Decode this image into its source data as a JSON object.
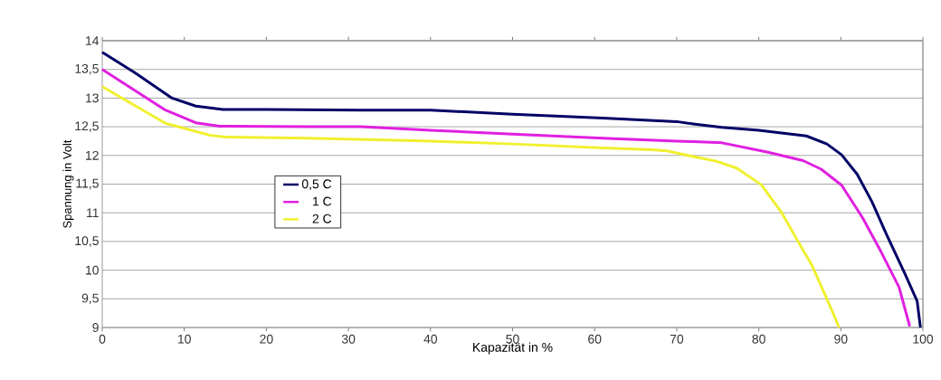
{
  "chart_data": {
    "type": "line",
    "xlabel": "Kapazität in %",
    "ylabel": "Spannung in Volt",
    "xlim": [
      0,
      100
    ],
    "ylim": [
      9,
      14
    ],
    "xticks": [
      0,
      10,
      20,
      30,
      40,
      50,
      60,
      70,
      80,
      90,
      100
    ],
    "yticks": [
      9,
      {
        "value": 9.5,
        "label": "9,5"
      },
      10,
      {
        "value": 10.5,
        "label": "10,5"
      },
      11,
      {
        "value": 11.5,
        "label": "11,5"
      },
      12,
      {
        "value": 12.5,
        "label": "12,5"
      },
      13,
      {
        "value": 13.5,
        "label": "13,5"
      },
      14
    ],
    "grid": "y",
    "legend": "left",
    "series": [
      {
        "name": "0,5 C",
        "color": "#000066",
        "x": [
          0,
          4,
          8.5,
          11.4,
          14.7,
          20,
          31.5,
          40,
          50,
          61,
          70,
          72,
          75.5,
          80,
          85.8,
          88.3,
          90.1,
          92,
          93.8,
          95.6,
          97.8,
          99.3,
          99.7
        ],
        "values": [
          13.8,
          13.44,
          13.0,
          12.86,
          12.8,
          12.8,
          12.79,
          12.79,
          12.72,
          12.65,
          12.59,
          12.55,
          12.49,
          12.44,
          12.34,
          12.2,
          12.01,
          11.67,
          11.19,
          10.61,
          9.94,
          9.46,
          9.0
        ]
      },
      {
        "name": "1 C",
        "color": "#e020e0",
        "x": [
          0,
          7.7,
          11.4,
          14.3,
          25,
          31.5,
          40,
          50,
          61,
          70,
          72,
          75.5,
          81,
          85.4,
          87.6,
          90.1,
          92.7,
          94.9,
          97.1,
          98.4
        ],
        "values": [
          13.5,
          12.79,
          12.57,
          12.51,
          12.5,
          12.5,
          12.44,
          12.37,
          12.3,
          12.25,
          12.24,
          12.22,
          12.06,
          11.91,
          11.76,
          11.48,
          10.9,
          10.32,
          9.7,
          9.02
        ]
      },
      {
        "name": "2 C",
        "color": "#f0f030",
        "x": [
          0,
          7.7,
          13.2,
          15,
          25,
          37,
          40,
          50,
          61,
          67,
          68.8,
          72,
          74.8,
          77.3,
          80.3,
          82.8,
          84.7,
          86.5,
          88.3,
          89.8
        ],
        "values": [
          13.2,
          12.56,
          12.35,
          12.32,
          12.3,
          12.26,
          12.25,
          12.2,
          12.13,
          12.1,
          12.08,
          11.98,
          11.9,
          11.78,
          11.49,
          11.0,
          10.52,
          10.08,
          9.5,
          9.0
        ]
      }
    ]
  }
}
